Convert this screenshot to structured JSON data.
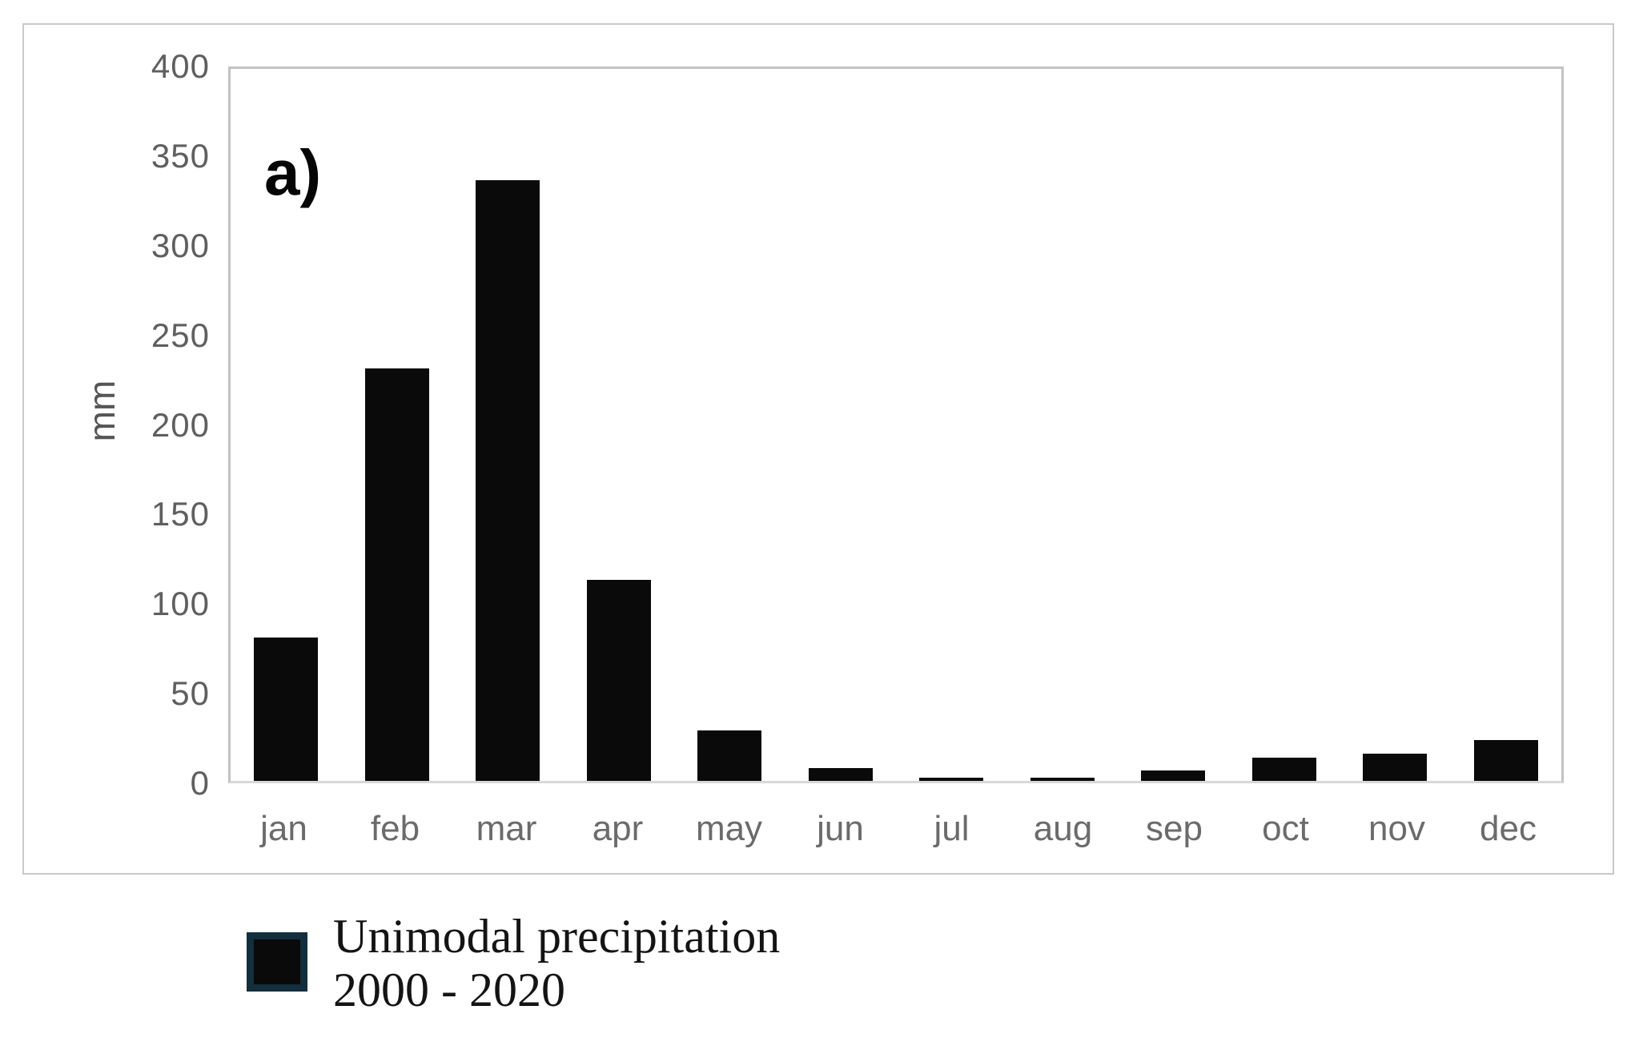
{
  "figure": {
    "panel_label": "a)",
    "y_axis_label": "mm"
  },
  "legend": {
    "line1": "Unimodal precipitation",
    "line2": "2000 - 2020",
    "swatch_fill": "#0a0a0a",
    "swatch_border": "#132f3d"
  },
  "chart_data": {
    "type": "bar",
    "categories": [
      "jan",
      "feb",
      "mar",
      "apr",
      "may",
      "jun",
      "jul",
      "aug",
      "sep",
      "oct",
      "nov",
      "dec"
    ],
    "values": [
      80,
      230,
      335,
      112,
      28,
      7,
      2,
      2,
      6,
      13,
      15,
      23
    ],
    "title": "",
    "xlabel": "",
    "ylabel": "mm",
    "ylim": [
      0,
      400
    ],
    "yticks": [
      0,
      50,
      100,
      150,
      200,
      250,
      300,
      350,
      400
    ],
    "bar_color": "#0a0a0a",
    "grid": false,
    "legend_entries": [
      "Unimodal precipitation 2000 - 2020"
    ],
    "legend_position": "below-left"
  }
}
